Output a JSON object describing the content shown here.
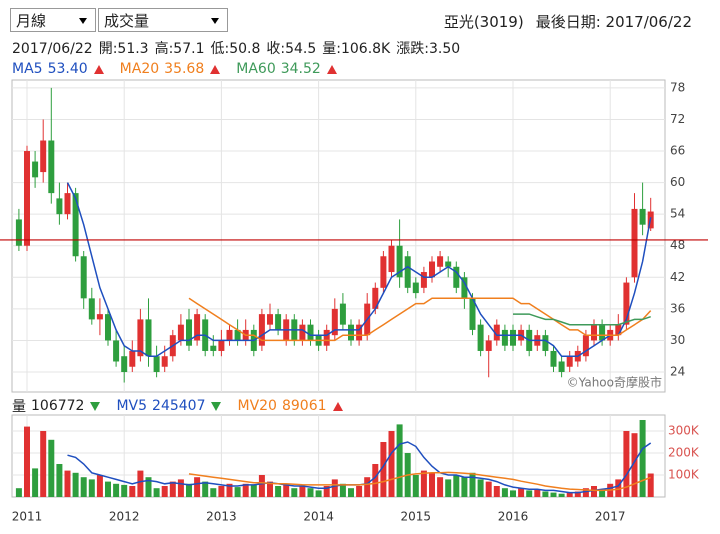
{
  "header": {
    "period_select": "月線",
    "indicator_select": "成交量",
    "stock": "亞光(3019)",
    "last_date": "最後日期: 2017/06/22",
    "quote_date": "2017/06/22",
    "quote": [
      "開:51.3",
      "高:57.1",
      "低:50.8",
      "收:54.5",
      "量:106.8K",
      "漲跌:3.50"
    ]
  },
  "chart_data": [
    {
      "type": "candlestick",
      "open": [
        53,
        48,
        64,
        62,
        68,
        57,
        54,
        58,
        46,
        38,
        34,
        35,
        30,
        27,
        25,
        27,
        34,
        27,
        25,
        27,
        30,
        34,
        30,
        34,
        29,
        28,
        30,
        32,
        30,
        32,
        29,
        33,
        35,
        30,
        34,
        30,
        33,
        31,
        29,
        31,
        37,
        33,
        30,
        31,
        36,
        40,
        43,
        48,
        46,
        41,
        40,
        42,
        44,
        45,
        44,
        42,
        38,
        33,
        28,
        30,
        32,
        32,
        30,
        32,
        29,
        31,
        28,
        26,
        25,
        26,
        27,
        30,
        33,
        30,
        31,
        33,
        42,
        55,
        51.3
      ],
      "high": [
        55,
        67,
        66,
        72,
        78,
        60,
        60,
        59,
        47,
        40,
        38,
        36,
        32,
        29,
        30,
        36,
        38,
        29,
        29,
        32,
        35,
        36,
        36,
        35,
        31,
        32,
        33,
        34,
        34,
        33,
        36,
        37,
        36,
        35,
        35,
        34,
        34,
        32,
        33,
        38,
        39,
        34,
        34,
        39,
        41,
        47,
        49,
        53,
        47,
        42,
        44,
        46,
        47,
        46,
        45,
        43,
        39,
        34,
        31,
        34,
        33,
        33,
        33,
        33,
        32,
        32,
        29,
        27,
        28,
        29,
        32,
        34,
        34,
        33,
        35,
        42,
        58,
        60,
        57.1
      ],
      "low": [
        47,
        47,
        59,
        60,
        56,
        52,
        53,
        45,
        36,
        33,
        31,
        29,
        25,
        22,
        24,
        26,
        25,
        23,
        24,
        26,
        29,
        28,
        29,
        27,
        27,
        27,
        29,
        29,
        29,
        27,
        28,
        32,
        31,
        29,
        29,
        29,
        29,
        28,
        28,
        30,
        32,
        29,
        29,
        30,
        35,
        39,
        42,
        40,
        39,
        38,
        39,
        41,
        43,
        42,
        39,
        36,
        31,
        27,
        23,
        29,
        28,
        28,
        29,
        27,
        28,
        27,
        24,
        23,
        24,
        25,
        26,
        29,
        29,
        29,
        30,
        32,
        41,
        50,
        50.8
      ],
      "close": [
        48,
        66,
        61,
        68,
        58,
        54,
        58,
        46,
        38,
        34,
        35,
        30,
        26,
        24,
        28,
        34,
        27,
        24,
        27,
        31,
        33,
        29,
        35,
        28,
        28,
        30,
        32,
        30,
        32,
        28,
        35,
        35,
        32,
        34,
        30,
        33,
        30,
        29,
        32,
        36,
        33,
        30,
        33,
        37,
        40,
        46,
        48,
        42,
        40,
        39,
        43,
        45,
        46,
        44,
        40,
        38,
        32,
        28,
        30,
        33,
        29,
        29,
        32,
        28,
        31,
        28,
        25,
        24,
        27,
        28,
        31,
        33,
        30,
        32,
        33,
        41,
        55,
        52,
        54.5
      ],
      "up_color": "#e03131",
      "down_color": "#2e9e3e",
      "ylim": [
        20.2,
        79.5
      ],
      "yticks": [
        24,
        30,
        36,
        42,
        48,
        54,
        60,
        66,
        72,
        78
      ],
      "grid": true,
      "reference_line": {
        "value": 49.1,
        "color": "#c00000"
      },
      "watermark": "©Yahoo奇摩股市",
      "series": [
        {
          "name": "MA5",
          "color": "#1f4fbf",
          "legend_value": "53.40",
          "trend": "up",
          "values": [
            null,
            null,
            null,
            null,
            null,
            null,
            60,
            57,
            52,
            46,
            40,
            36,
            32,
            29,
            28,
            28,
            27,
            27,
            28,
            29,
            30,
            30,
            31,
            31,
            30,
            30,
            30,
            30,
            30,
            30,
            31,
            32,
            32,
            32,
            32,
            32,
            31,
            31,
            31,
            32,
            32,
            32,
            32,
            34,
            36,
            39,
            42,
            43,
            44,
            43,
            42,
            42,
            43,
            44,
            43,
            41,
            38,
            35,
            33,
            31,
            31,
            31,
            31,
            30,
            30,
            30,
            29,
            27,
            27,
            27,
            28,
            29,
            30,
            31,
            31,
            34,
            39,
            45,
            53.4
          ]
        },
        {
          "name": "MA20",
          "color": "#f07f1e",
          "legend_value": "35.68",
          "trend": "up",
          "values": [
            null,
            null,
            null,
            null,
            null,
            null,
            null,
            null,
            null,
            null,
            null,
            null,
            null,
            null,
            null,
            null,
            null,
            null,
            null,
            null,
            null,
            38,
            37,
            36,
            35,
            34,
            33,
            32,
            31,
            31,
            30,
            30,
            30,
            30,
            30,
            30,
            30,
            30,
            30,
            30,
            31,
            31,
            31,
            31,
            32,
            33,
            34,
            35,
            36,
            37,
            37,
            38,
            38,
            38,
            38,
            38,
            38,
            38,
            38,
            38,
            38,
            38,
            37,
            37,
            36,
            35,
            34,
            33,
            32,
            32,
            31,
            31,
            31,
            31,
            31,
            32,
            33,
            34,
            35.68
          ]
        },
        {
          "name": "MA60",
          "color": "#3f9a5a",
          "legend_value": "34.52",
          "trend": "up",
          "values": [
            null,
            null,
            null,
            null,
            null,
            null,
            null,
            null,
            null,
            null,
            null,
            null,
            null,
            null,
            null,
            null,
            null,
            null,
            null,
            null,
            null,
            null,
            null,
            null,
            null,
            null,
            null,
            null,
            null,
            null,
            null,
            null,
            null,
            null,
            null,
            null,
            null,
            null,
            null,
            null,
            null,
            null,
            null,
            null,
            null,
            null,
            null,
            null,
            null,
            null,
            null,
            null,
            null,
            null,
            null,
            null,
            null,
            null,
            null,
            null,
            null,
            35,
            35,
            35,
            34.5,
            34,
            34,
            33.5,
            33,
            33,
            33,
            33,
            33,
            33,
            33,
            33.5,
            34,
            34,
            34.52
          ]
        }
      ]
    },
    {
      "type": "volume",
      "name": "量",
      "legend_value": "106772",
      "trend": "down",
      "categories": [
        null,
        "2011",
        null,
        null,
        null,
        null,
        null,
        null,
        null,
        null,
        null,
        null,
        null,
        "2012",
        null,
        null,
        null,
        null,
        null,
        null,
        null,
        null,
        null,
        null,
        null,
        "2013",
        null,
        null,
        null,
        null,
        null,
        null,
        null,
        null,
        null,
        null,
        null,
        "2014",
        null,
        null,
        null,
        null,
        null,
        null,
        null,
        null,
        null,
        null,
        null,
        "2015",
        null,
        null,
        null,
        null,
        null,
        null,
        null,
        null,
        null,
        null,
        null,
        "2016",
        null,
        null,
        null,
        null,
        null,
        null,
        null,
        null,
        null,
        null,
        null,
        "2017",
        null,
        null,
        null,
        null,
        null
      ],
      "values": [
        40000,
        320000,
        130000,
        300000,
        260000,
        150000,
        120000,
        110000,
        90000,
        80000,
        100000,
        70000,
        60000,
        55000,
        50000,
        120000,
        90000,
        40000,
        50000,
        70000,
        80000,
        60000,
        90000,
        70000,
        40000,
        50000,
        60000,
        45000,
        60000,
        55000,
        100000,
        70000,
        50000,
        60000,
        40000,
        50000,
        40000,
        30000,
        50000,
        80000,
        60000,
        40000,
        50000,
        90000,
        150000,
        250000,
        300000,
        330000,
        200000,
        100000,
        120000,
        110000,
        90000,
        80000,
        100000,
        90000,
        110000,
        80000,
        70000,
        50000,
        40000,
        30000,
        40000,
        30000,
        35000,
        25000,
        20000,
        15000,
        20000,
        25000,
        40000,
        50000,
        30000,
        60000,
        80000,
        300000,
        290000,
        350000,
        106772
      ],
      "ylim": [
        0,
        372700
      ],
      "yticks": [
        {
          "value": 100000,
          "label": "100K"
        },
        {
          "value": 200000,
          "label": "200K"
        },
        {
          "value": 300000,
          "label": "300K"
        }
      ],
      "grid": true,
      "series": [
        {
          "name": "MV5",
          "color": "#1f4fbf",
          "legend_value": "245407",
          "trend": "down",
          "values": [
            null,
            null,
            null,
            null,
            null,
            null,
            190000,
            180000,
            150000,
            110000,
            100000,
            90000,
            80000,
            70000,
            60000,
            70000,
            75000,
            70000,
            60000,
            65000,
            60000,
            55000,
            60000,
            65000,
            60000,
            55000,
            50000,
            50000,
            55000,
            55000,
            60000,
            65000,
            60000,
            55000,
            50000,
            50000,
            45000,
            40000,
            40000,
            50000,
            55000,
            55000,
            55000,
            60000,
            90000,
            140000,
            200000,
            240000,
            250000,
            230000,
            180000,
            140000,
            110000,
            100000,
            100000,
            90000,
            90000,
            85000,
            80000,
            70000,
            55000,
            45000,
            40000,
            35000,
            35000,
            30000,
            30000,
            25000,
            20000,
            20000,
            25000,
            30000,
            35000,
            40000,
            50000,
            100000,
            160000,
            220000,
            245407
          ]
        },
        {
          "name": "MV20",
          "color": "#f07f1e",
          "legend_value": "89061",
          "trend": "up",
          "values": [
            null,
            null,
            null,
            null,
            null,
            null,
            null,
            null,
            null,
            null,
            null,
            null,
            null,
            null,
            null,
            null,
            null,
            null,
            null,
            null,
            null,
            105000,
            100000,
            95000,
            90000,
            85000,
            80000,
            75000,
            70000,
            65000,
            65000,
            62000,
            60000,
            60000,
            58000,
            56000,
            55000,
            55000,
            55000,
            55000,
            55000,
            55000,
            55000,
            58000,
            62000,
            70000,
            80000,
            90000,
            100000,
            105000,
            108000,
            110000,
            110000,
            112000,
            110000,
            108000,
            105000,
            100000,
            95000,
            90000,
            85000,
            80000,
            72000,
            65000,
            58000,
            50000,
            45000,
            40000,
            36000,
            34000,
            32000,
            30000,
            30000,
            32000,
            35000,
            45000,
            60000,
            75000,
            89061
          ]
        }
      ]
    }
  ]
}
